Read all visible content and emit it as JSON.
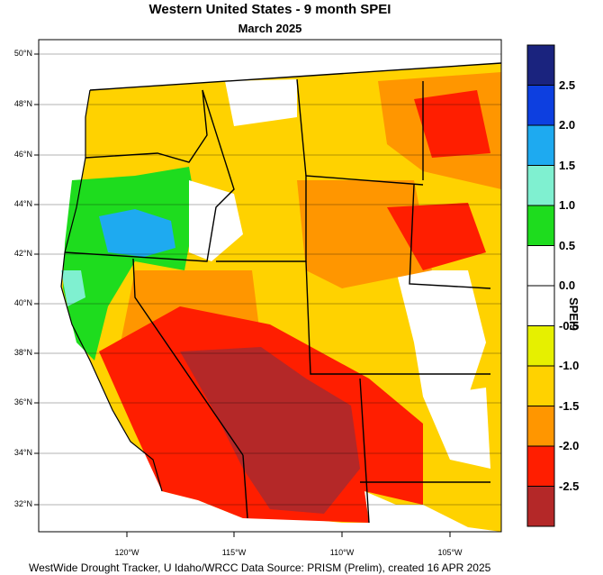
{
  "header": {
    "title": "Western United States - 9 month SPEI",
    "subtitle": "March 2025"
  },
  "footer": {
    "credit": "WestWide Drought Tracker, U Idaho/WRCC Data Source: PRISM (Prelim), created 16 APR 2025"
  },
  "axes": {
    "lat_labels": [
      "50°N",
      "48°N",
      "46°N",
      "44°N",
      "42°N",
      "40°N",
      "38°N",
      "36°N",
      "34°N",
      "32°N"
    ],
    "lon_labels": [
      "120°W",
      "115°W",
      "110°W",
      "105°W"
    ]
  },
  "colorbar": {
    "title": "SPEI9",
    "labels": [
      "2.5",
      "2.0",
      "1.5",
      "1.0",
      "0.5",
      "0.0",
      "-0.5",
      "-1.0",
      "-1.5",
      "-2.0",
      "-2.5"
    ],
    "colors": [
      "#1a237e",
      "#0d3fe0",
      "#1eaaf0",
      "#7ff0d0",
      "#1edc1e",
      "#ffffff",
      "#ffffff",
      "#e6f000",
      "#ffd200",
      "#ff9600",
      "#ff1e00",
      "#b42828"
    ]
  },
  "palette": {
    "wet_strong": "#1eaaf0",
    "wet": "#1edc1e",
    "dry_mild": "#ffd200",
    "dry": "#ff9600",
    "dry_severe": "#ff1e00",
    "dry_extreme": "#b42828"
  }
}
